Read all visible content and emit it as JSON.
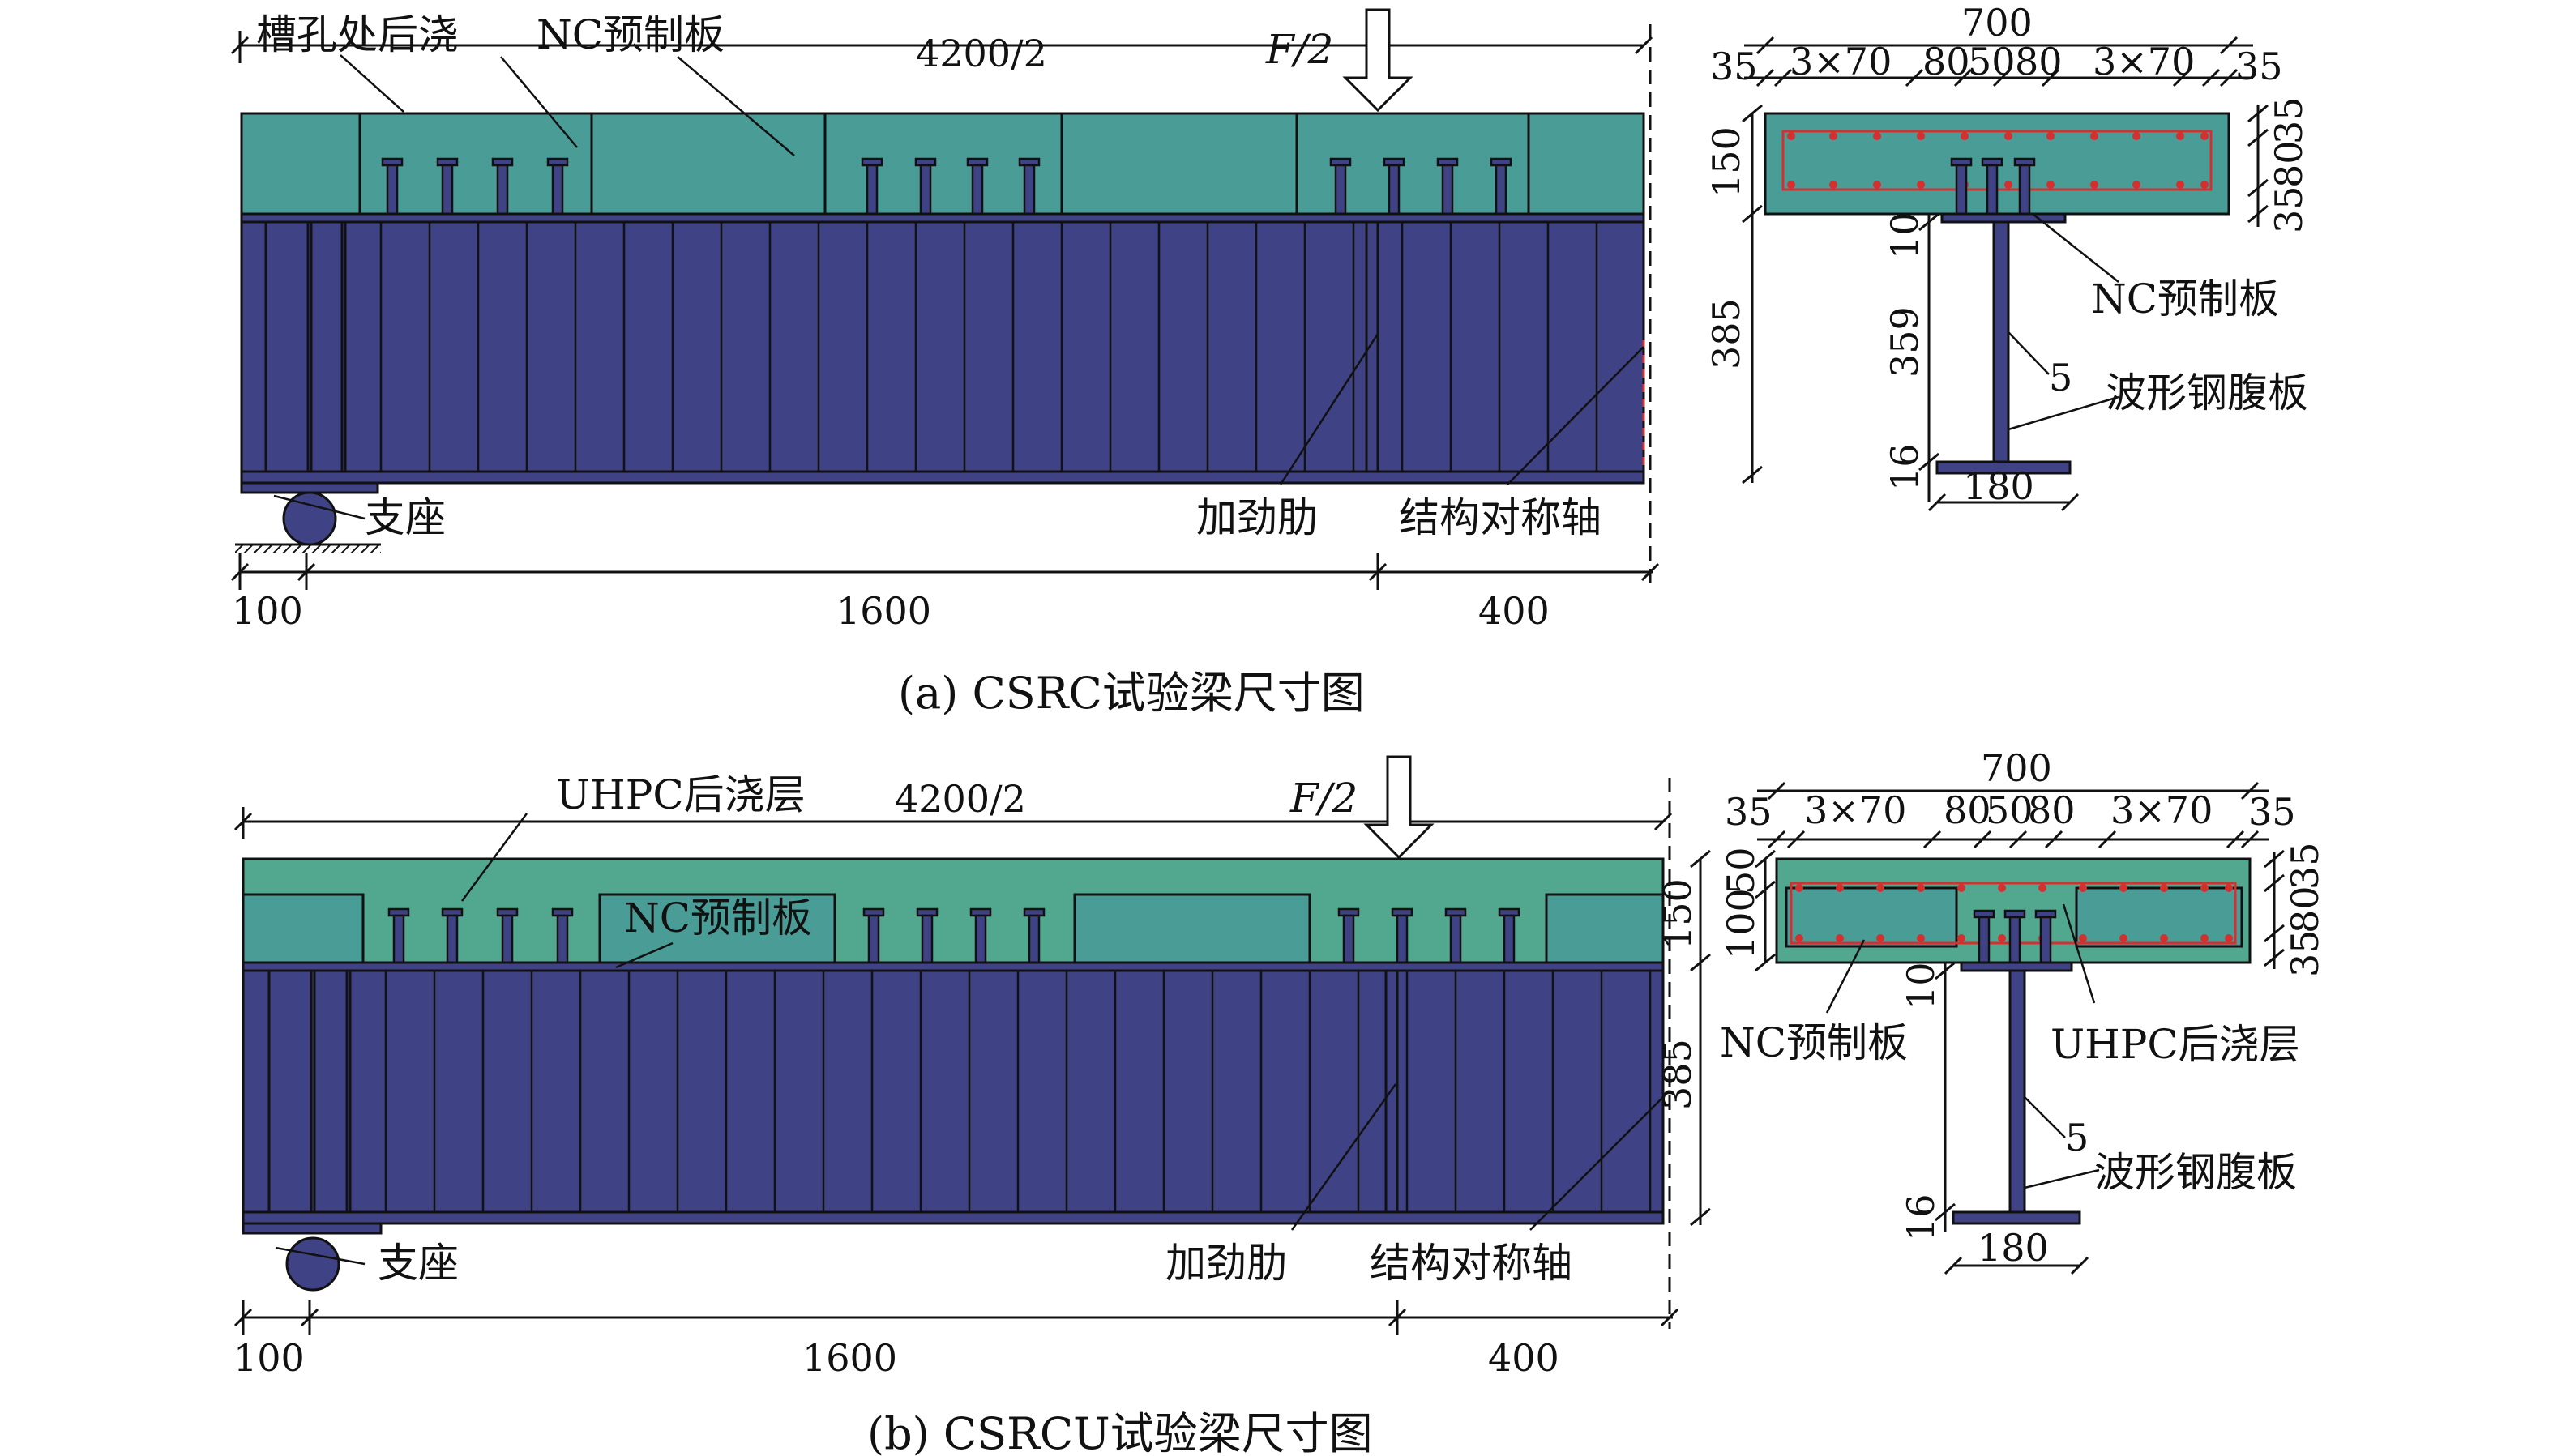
{
  "colors": {
    "slab": "#4a9c96",
    "uhpc": "#52a88e",
    "steel": "#3f4285",
    "line": "#111111",
    "rebar": "#d43030"
  },
  "panel_a": {
    "caption": "(a) CSRC试验梁尺寸图",
    "labels": {
      "slot_pour": "槽孔处后浇",
      "nc_slab": "NC预制板",
      "half_span": "4200/2",
      "load": "F/2",
      "support": "支座",
      "stiffener": "加劲肋",
      "sym_axis": "结构对称轴",
      "nc_slab_sec": "NC预制板",
      "web": "波形钢腹板"
    },
    "dims": {
      "end": "100",
      "mid": "1600",
      "near_axis": "400",
      "width": "700",
      "d35a": "35",
      "d3x70a": "3×70",
      "d80a": "80",
      "d50": "50",
      "d80b": "80",
      "d3x70b": "3×70",
      "d35b": "35",
      "slab_h": "150",
      "rt35a": "35",
      "rt80": "80",
      "rt35b": "35",
      "h10": "10",
      "h359": "359",
      "h16": "16",
      "h385": "385",
      "tw": "5",
      "bf": "180"
    }
  },
  "panel_b": {
    "caption": "(b) CSRCU试验梁尺寸图",
    "labels": {
      "uhpc_layer": "UHPC后浇层",
      "half_span": "4200/2",
      "load": "F/2",
      "nc_slab": "NC预制板",
      "support": "支座",
      "stiffener": "加劲肋",
      "sym_axis": "结构对称轴",
      "nc_slab_sec": "NC预制板",
      "uhpc_sec": "UHPC后浇层",
      "web": "波形钢腹板"
    },
    "dims": {
      "end": "100",
      "mid": "1600",
      "near_axis": "400",
      "width": "700",
      "d35a": "35",
      "d3x70a": "3×70",
      "d80a": "80",
      "d50": "50",
      "d80b": "80",
      "d3x70b": "3×70",
      "d35b": "35",
      "slab_h": "150",
      "lft50": "50",
      "lft100": "100",
      "rt35a": "35",
      "rt80": "80",
      "rt35b": "35",
      "h10": "10",
      "h16": "16",
      "h385": "385",
      "tw": "5",
      "bf": "180"
    }
  }
}
